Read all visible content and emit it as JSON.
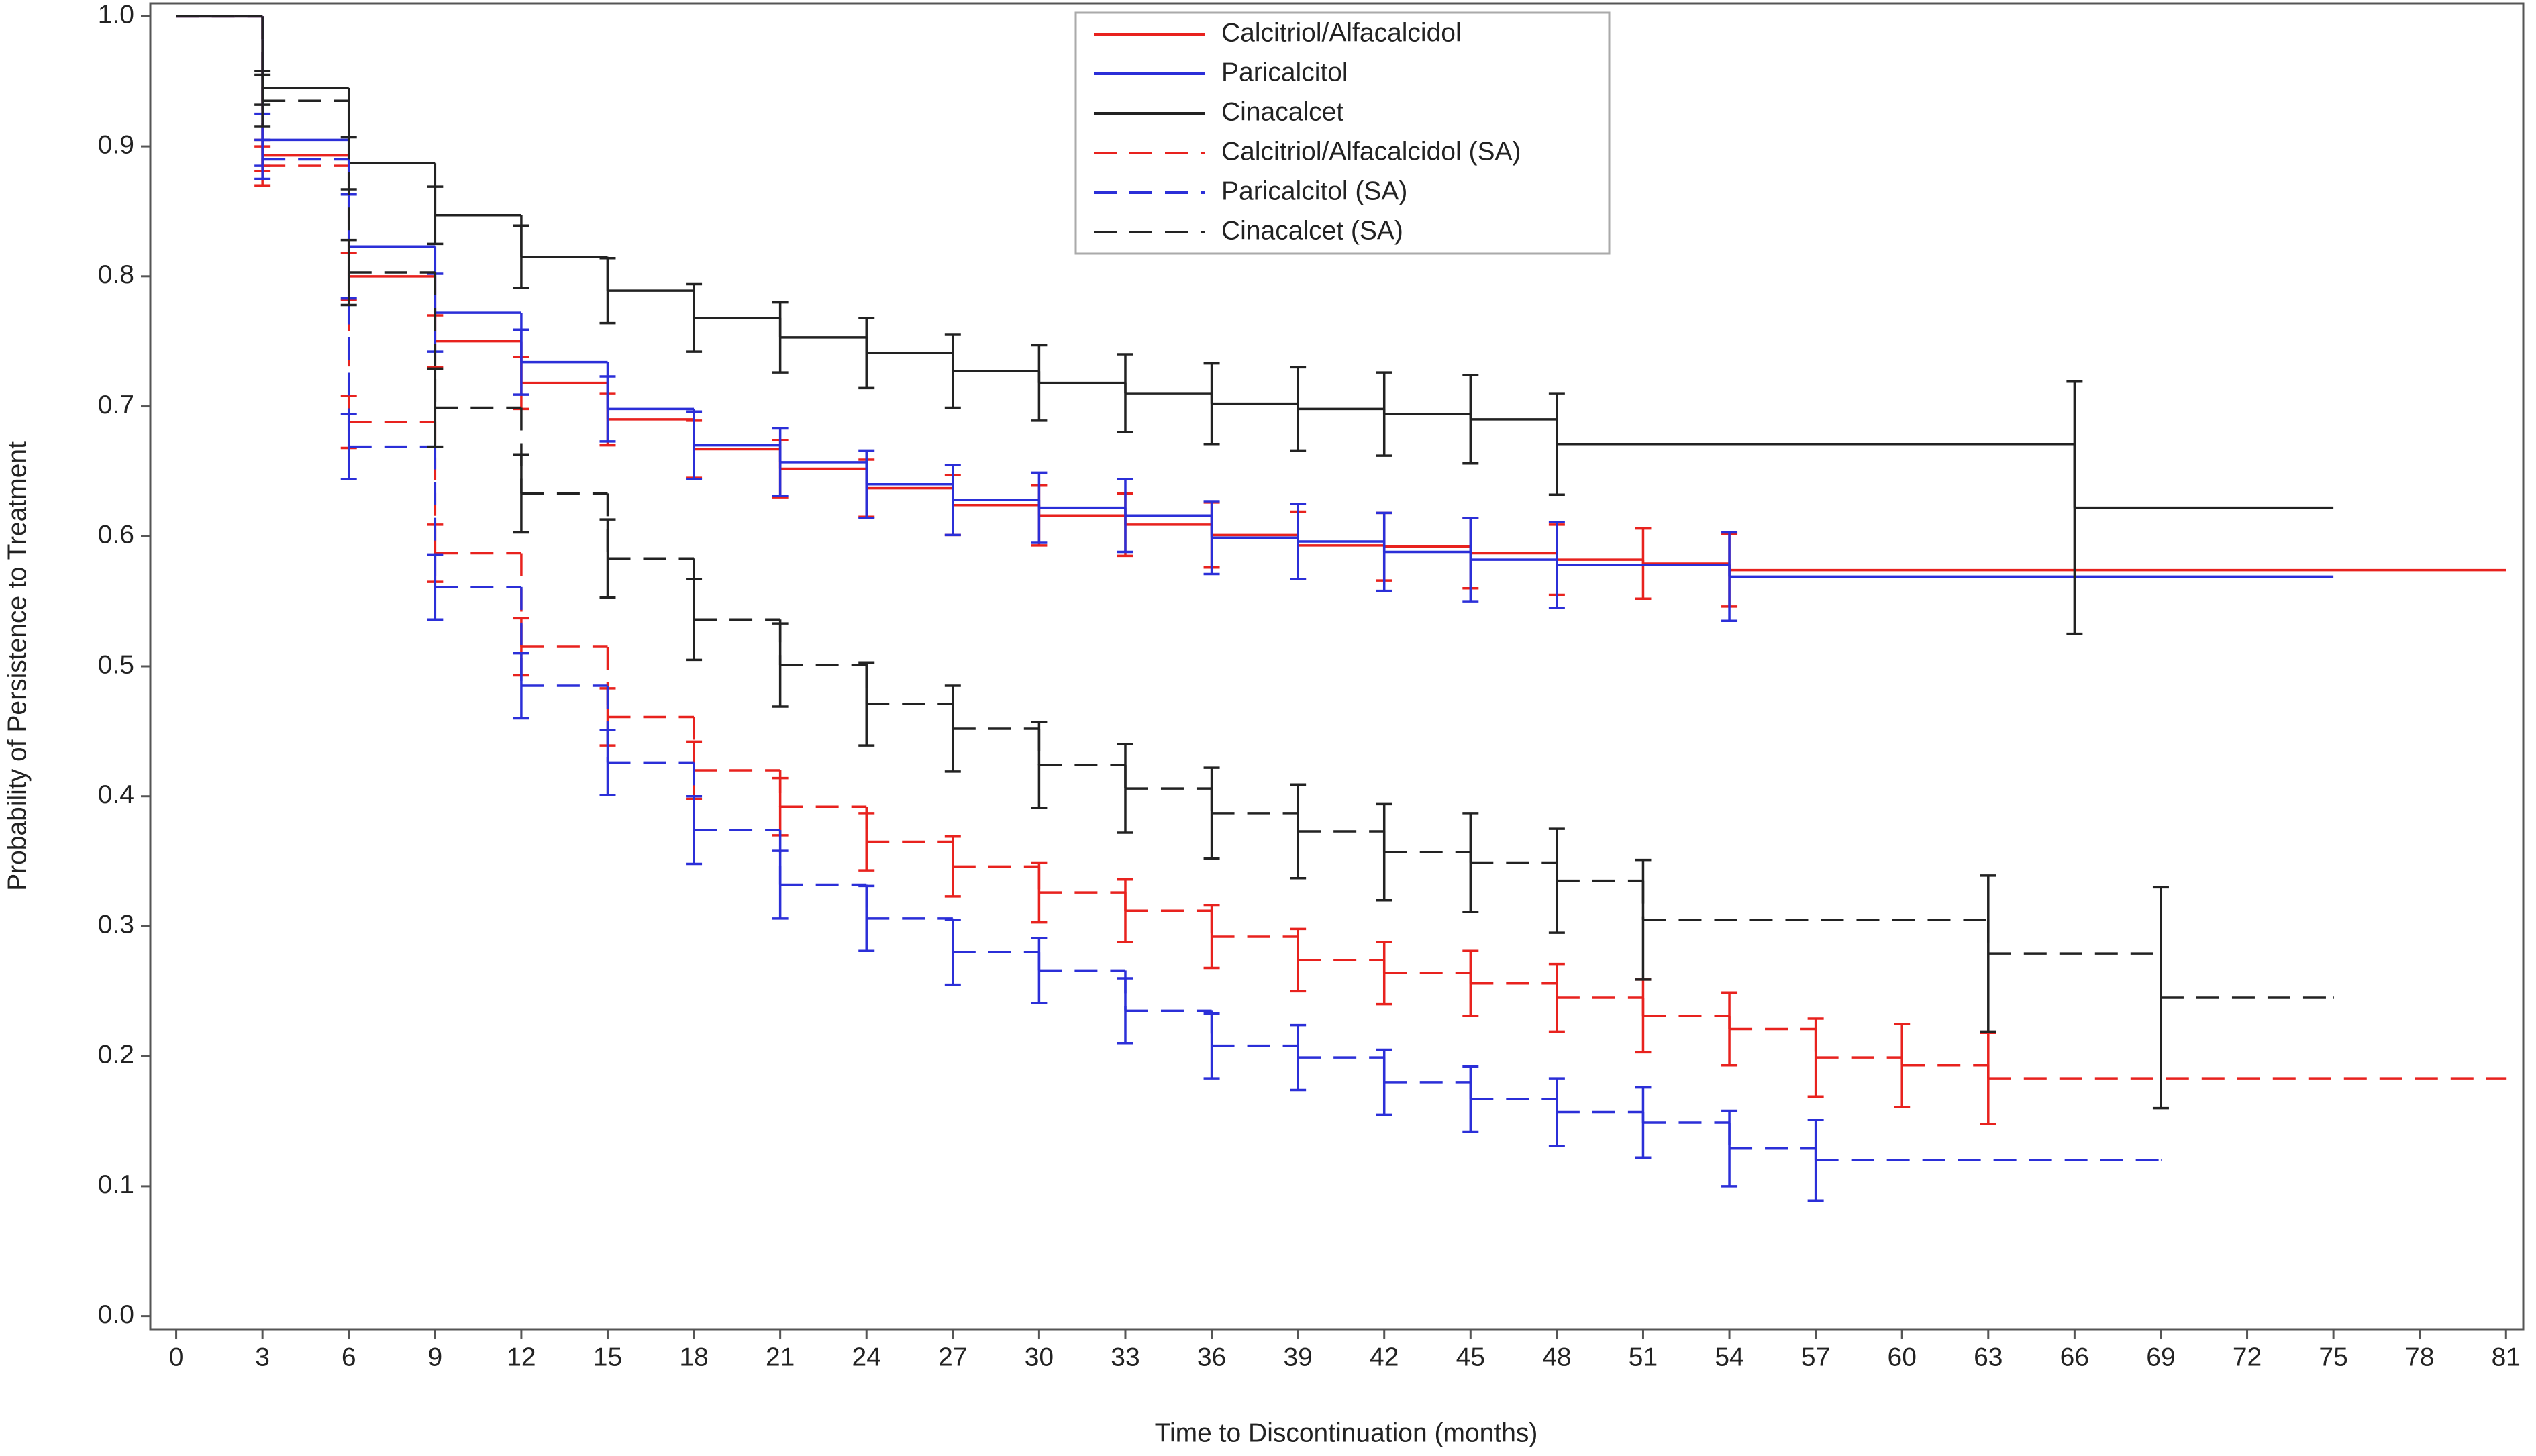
{
  "chart_data": {
    "type": "step",
    "xlabel": "Time to Discontinuation (months)",
    "ylabel": "Probability of Persistence to Treatment",
    "xlim": [
      -0.9,
      81.6
    ],
    "ylim": [
      -0.01,
      1.01
    ],
    "xticks": [
      0,
      3,
      6,
      9,
      12,
      15,
      18,
      21,
      24,
      27,
      30,
      33,
      36,
      39,
      42,
      45,
      48,
      51,
      54,
      57,
      60,
      63,
      66,
      69,
      72,
      75,
      78,
      81
    ],
    "yticks": [
      {
        "value": 0,
        "label": "0.0"
      },
      0.1,
      0.2,
      0.3,
      0.4,
      0.5,
      0.6,
      0.7,
      0.8,
      0.9,
      {
        "value": 1,
        "label": "1.0"
      }
    ],
    "legend": "top-center",
    "series": [
      {
        "name": "Calcitriol/Alfacalcidol",
        "color": "#e8221e",
        "dashed": false,
        "x": [
          0,
          3,
          6,
          9,
          12,
          15,
          18,
          21,
          24,
          27,
          30,
          33,
          36,
          39,
          42,
          45,
          48,
          51,
          54,
          81
        ],
        "values": [
          1.0,
          0.893,
          0.8,
          0.75,
          0.718,
          0.69,
          0.667,
          0.652,
          0.637,
          0.624,
          0.616,
          0.609,
          0.601,
          0.593,
          0.592,
          0.587,
          0.582,
          0.579,
          0.574,
          0.574
        ],
        "errors": [
          null,
          0.012,
          0.018,
          0.02,
          0.02,
          0.02,
          0.022,
          0.022,
          0.022,
          0.023,
          0.023,
          0.024,
          0.025,
          0.026,
          0.026,
          0.027,
          0.027,
          0.027,
          0.028,
          null
        ]
      },
      {
        "name": "Paricalcitol",
        "color": "#2b2fd8",
        "dashed": false,
        "x": [
          0,
          3,
          6,
          9,
          12,
          15,
          18,
          21,
          24,
          27,
          30,
          33,
          36,
          39,
          42,
          45,
          48,
          54,
          75
        ],
        "values": [
          1.0,
          0.905,
          0.823,
          0.772,
          0.734,
          0.698,
          0.67,
          0.657,
          0.64,
          0.628,
          0.622,
          0.616,
          0.599,
          0.596,
          0.588,
          0.582,
          0.578,
          0.569,
          0.569
        ],
        "errors": [
          null,
          0.02,
          0.04,
          0.03,
          0.025,
          0.025,
          0.026,
          0.026,
          0.026,
          0.027,
          0.027,
          0.028,
          0.028,
          0.029,
          0.03,
          0.032,
          0.033,
          0.034,
          null
        ]
      },
      {
        "name": "Cinacalcet",
        "color": "#222222",
        "dashed": false,
        "x": [
          0,
          3,
          6,
          9,
          12,
          15,
          18,
          21,
          24,
          27,
          30,
          33,
          36,
          39,
          42,
          45,
          48,
          66,
          75
        ],
        "values": [
          1.0,
          0.945,
          0.887,
          0.847,
          0.815,
          0.789,
          0.768,
          0.753,
          0.741,
          0.727,
          0.718,
          0.71,
          0.702,
          0.698,
          0.694,
          0.69,
          0.671,
          0.622,
          0.622
        ],
        "errors": [
          null,
          0.013,
          0.02,
          0.022,
          0.024,
          0.025,
          0.026,
          0.027,
          0.027,
          0.028,
          0.029,
          0.03,
          0.031,
          0.032,
          0.032,
          0.034,
          0.039,
          0.097,
          null
        ]
      },
      {
        "name": "Calcitriol/Alfacalcidol (SA)",
        "color": "#e8221e",
        "dashed": true,
        "x": [
          0,
          3,
          6,
          9,
          12,
          15,
          18,
          21,
          24,
          27,
          30,
          33,
          36,
          39,
          42,
          45,
          48,
          51,
          54,
          57,
          60,
          63,
          81
        ],
        "values": [
          1.0,
          0.885,
          0.688,
          0.587,
          0.515,
          0.461,
          0.42,
          0.392,
          0.365,
          0.346,
          0.326,
          0.312,
          0.292,
          0.274,
          0.264,
          0.256,
          0.245,
          0.231,
          0.221,
          0.199,
          0.193,
          0.183,
          0.183
        ],
        "errors": [
          null,
          0.015,
          0.02,
          0.022,
          0.022,
          0.022,
          0.022,
          0.022,
          0.022,
          0.023,
          0.023,
          0.024,
          0.024,
          0.024,
          0.024,
          0.025,
          0.026,
          0.028,
          0.028,
          0.03,
          0.032,
          0.035,
          null
        ]
      },
      {
        "name": "Paricalcitol (SA)",
        "color": "#2b2fd8",
        "dashed": true,
        "x": [
          0,
          3,
          6,
          9,
          12,
          15,
          18,
          21,
          24,
          27,
          30,
          33,
          36,
          39,
          42,
          45,
          48,
          51,
          54,
          57,
          69
        ],
        "values": [
          1.0,
          0.89,
          0.669,
          0.561,
          0.485,
          0.426,
          0.374,
          0.332,
          0.306,
          0.28,
          0.266,
          0.235,
          0.208,
          0.199,
          0.18,
          0.167,
          0.157,
          0.149,
          0.129,
          0.12,
          0.12
        ],
        "errors": [
          null,
          0.015,
          0.025,
          0.025,
          0.025,
          0.025,
          0.026,
          0.026,
          0.025,
          0.025,
          0.025,
          0.025,
          0.025,
          0.025,
          0.025,
          0.025,
          0.026,
          0.027,
          0.029,
          0.031,
          null
        ]
      },
      {
        "name": "Cinacalcet (SA)",
        "color": "#222222",
        "dashed": true,
        "x": [
          0,
          3,
          6,
          9,
          12,
          15,
          18,
          21,
          24,
          27,
          30,
          33,
          36,
          39,
          42,
          45,
          48,
          51,
          63,
          69,
          75
        ],
        "values": [
          1.0,
          0.935,
          0.803,
          0.699,
          0.633,
          0.583,
          0.536,
          0.501,
          0.471,
          0.452,
          0.424,
          0.406,
          0.387,
          0.373,
          0.357,
          0.349,
          0.335,
          0.305,
          0.279,
          0.245,
          0.245
        ],
        "errors": [
          null,
          0.02,
          0.025,
          0.03,
          0.03,
          0.03,
          0.031,
          0.032,
          0.032,
          0.033,
          0.033,
          0.034,
          0.035,
          0.036,
          0.037,
          0.038,
          0.04,
          0.046,
          0.06,
          0.085,
          null
        ]
      }
    ]
  }
}
